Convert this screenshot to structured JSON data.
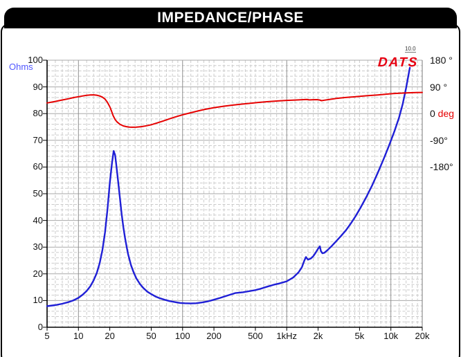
{
  "title_bar": {
    "label": "IMPEDANCE/PHASE"
  },
  "logo": {
    "text": "DATS"
  },
  "watermark": {
    "text": "10.0"
  },
  "left_axis": {
    "label": "Ohms"
  },
  "colors": {
    "impedance_curve": "#1f1fd6",
    "phase_curve": "#e60000",
    "grid_minor": "#cbcbcb",
    "grid_major": "#a8a8a8",
    "grid_decade": "#8f8f8f",
    "axis": "#000000",
    "title_bg": "#000000",
    "title_text": "#ffffff",
    "ohms_label": "#5157ff",
    "logo_red": "#e60012"
  },
  "chart_data": {
    "type": "line",
    "title": "IMPEDANCE/PHASE",
    "grid": true,
    "x_axis": {
      "scale": "log",
      "min": 5,
      "max": 20000,
      "unit": "Hz",
      "ticks": [
        {
          "v": 5,
          "label": "5"
        },
        {
          "v": 10,
          "label": "10"
        },
        {
          "v": 20,
          "label": "20"
        },
        {
          "v": 50,
          "label": "50"
        },
        {
          "v": 100,
          "label": "100"
        },
        {
          "v": 200,
          "label": "200"
        },
        {
          "v": 500,
          "label": "500"
        },
        {
          "v": 1000,
          "label": "1kHz"
        },
        {
          "v": 2000,
          "label": "2k"
        },
        {
          "v": 5000,
          "label": "5k"
        },
        {
          "v": 10000,
          "label": "10k"
        },
        {
          "v": 20000,
          "label": "20k"
        }
      ],
      "minor_mantissas": [
        1,
        1.2,
        1.4,
        1.6,
        1.8,
        2,
        2.5,
        3,
        3.5,
        4,
        4.5,
        5,
        6,
        7,
        8,
        9
      ]
    },
    "y_axis_left": {
      "label": "Ohms",
      "min": 0,
      "max": 100,
      "major_step": 10,
      "minor_step": 2,
      "tick_labels": [
        "0",
        "10",
        "20",
        "30",
        "40",
        "50",
        "60",
        "70",
        "80",
        "90",
        "100"
      ]
    },
    "y_axis_right": {
      "label": "deg",
      "zero_aligned_left_value": 80,
      "degrees_per_left_division": 90,
      "ticks": [
        {
          "deg": 180,
          "text": "180 °"
        },
        {
          "deg": 90,
          "text": "90 °"
        },
        {
          "deg": 0,
          "text": "0",
          "unit": "deg"
        },
        {
          "deg": -90,
          "text": "-90°"
        },
        {
          "deg": -180,
          "text": "-180°"
        }
      ]
    },
    "series": [
      {
        "name": "impedance",
        "axis": "left",
        "unit": "Ohms",
        "color": "#1f1fd6",
        "points": [
          [
            5,
            7.9
          ],
          [
            6,
            8.3
          ],
          [
            7,
            8.8
          ],
          [
            8,
            9.4
          ],
          [
            9,
            10.1
          ],
          [
            10,
            11
          ],
          [
            11,
            12.2
          ],
          [
            12,
            13.6
          ],
          [
            13,
            15.3
          ],
          [
            14,
            17.6
          ],
          [
            15,
            20.3
          ],
          [
            16,
            24
          ],
          [
            17,
            29
          ],
          [
            18,
            35.5
          ],
          [
            19,
            44
          ],
          [
            20,
            54
          ],
          [
            21,
            61.5
          ],
          [
            21.8,
            66
          ],
          [
            22.5,
            64.5
          ],
          [
            23,
            61.5
          ],
          [
            24,
            55
          ],
          [
            25,
            48.5
          ],
          [
            26,
            42.5
          ],
          [
            27,
            37.5
          ],
          [
            28,
            33.5
          ],
          [
            29,
            30.2
          ],
          [
            30,
            27.3
          ],
          [
            32,
            23.2
          ],
          [
            34,
            20.4
          ],
          [
            36,
            18.3
          ],
          [
            39,
            16.2
          ],
          [
            42,
            14.7
          ],
          [
            46,
            13.3
          ],
          [
            50,
            12.4
          ],
          [
            55,
            11.5
          ],
          [
            60,
            10.9
          ],
          [
            67,
            10.3
          ],
          [
            75,
            9.8
          ],
          [
            85,
            9.4
          ],
          [
            95,
            9.1
          ],
          [
            105,
            9
          ],
          [
            120,
            8.9
          ],
          [
            135,
            9
          ],
          [
            155,
            9.3
          ],
          [
            175,
            9.7
          ],
          [
            200,
            10.3
          ],
          [
            230,
            11
          ],
          [
            270,
            11.9
          ],
          [
            320,
            12.8
          ],
          [
            380,
            13.1
          ],
          [
            450,
            13.6
          ],
          [
            500,
            13.9
          ],
          [
            560,
            14.4
          ],
          [
            650,
            15.2
          ],
          [
            750,
            15.9
          ],
          [
            850,
            16.4
          ],
          [
            1000,
            17.2
          ],
          [
            1150,
            18.6
          ],
          [
            1300,
            20.6
          ],
          [
            1400,
            22.5
          ],
          [
            1470,
            24.8
          ],
          [
            1530,
            26.3
          ],
          [
            1600,
            25.3
          ],
          [
            1700,
            25.7
          ],
          [
            1800,
            26.6
          ],
          [
            1900,
            28
          ],
          [
            2000,
            29.4
          ],
          [
            2080,
            30.3
          ],
          [
            2130,
            28.5
          ],
          [
            2200,
            27.7
          ],
          [
            2300,
            27.9
          ],
          [
            2450,
            28.8
          ],
          [
            2700,
            30.4
          ],
          [
            3000,
            32.3
          ],
          [
            3300,
            34.1
          ],
          [
            3700,
            36.3
          ],
          [
            4100,
            38.7
          ],
          [
            4600,
            41.7
          ],
          [
            5100,
            44.7
          ],
          [
            5800,
            48.7
          ],
          [
            6600,
            53.1
          ],
          [
            7500,
            57.9
          ],
          [
            8500,
            62.9
          ],
          [
            9600,
            68
          ],
          [
            10800,
            73.3
          ],
          [
            12000,
            78.6
          ],
          [
            13000,
            83.6
          ],
          [
            14000,
            89.6
          ],
          [
            14800,
            94.7
          ],
          [
            15200,
            97.2
          ]
        ]
      },
      {
        "name": "phase",
        "axis": "right",
        "unit": "deg",
        "color": "#e60000",
        "points": [
          [
            5,
            36
          ],
          [
            6,
            41
          ],
          [
            7,
            46
          ],
          [
            8,
            50
          ],
          [
            9,
            54
          ],
          [
            10,
            57
          ],
          [
            11,
            59.5
          ],
          [
            12,
            61.5
          ],
          [
            13,
            62.8
          ],
          [
            14,
            63.2
          ],
          [
            15,
            62
          ],
          [
            16,
            59.5
          ],
          [
            17,
            55.5
          ],
          [
            18,
            49
          ],
          [
            19,
            38
          ],
          [
            20,
            23
          ],
          [
            20.8,
            8
          ],
          [
            21.5,
            -6
          ],
          [
            22.5,
            -20
          ],
          [
            23.5,
            -28
          ],
          [
            25,
            -36
          ],
          [
            27,
            -41.5
          ],
          [
            29,
            -44
          ],
          [
            31,
            -45.5
          ],
          [
            33,
            -46
          ],
          [
            36,
            -45.5
          ],
          [
            40,
            -44
          ],
          [
            45,
            -41
          ],
          [
            50,
            -37.5
          ],
          [
            57,
            -31.5
          ],
          [
            65,
            -25
          ],
          [
            75,
            -17.5
          ],
          [
            85,
            -11.5
          ],
          [
            100,
            -4
          ],
          [
            115,
            1.5
          ],
          [
            135,
            7.5
          ],
          [
            160,
            13.5
          ],
          [
            200,
            20
          ],
          [
            250,
            25
          ],
          [
            300,
            28.5
          ],
          [
            370,
            32
          ],
          [
            450,
            35
          ],
          [
            550,
            38
          ],
          [
            700,
            41
          ],
          [
            850,
            43
          ],
          [
            1000,
            44.5
          ],
          [
            1200,
            45.8
          ],
          [
            1400,
            46.8
          ],
          [
            1550,
            47.6
          ],
          [
            1650,
            46.2
          ],
          [
            1800,
            46.8
          ],
          [
            1950,
            47.2
          ],
          [
            2060,
            46
          ],
          [
            2160,
            43.5
          ],
          [
            2300,
            45.2
          ],
          [
            2600,
            48
          ],
          [
            3000,
            51
          ],
          [
            3600,
            54
          ],
          [
            4300,
            56.2
          ],
          [
            5000,
            58
          ],
          [
            6000,
            60.3
          ],
          [
            7500,
            63
          ],
          [
            9000,
            65.5
          ],
          [
            10500,
            67.4
          ],
          [
            12500,
            69
          ],
          [
            15000,
            70.2
          ],
          [
            17500,
            70.8
          ],
          [
            20000,
            71.3
          ]
        ]
      }
    ]
  }
}
